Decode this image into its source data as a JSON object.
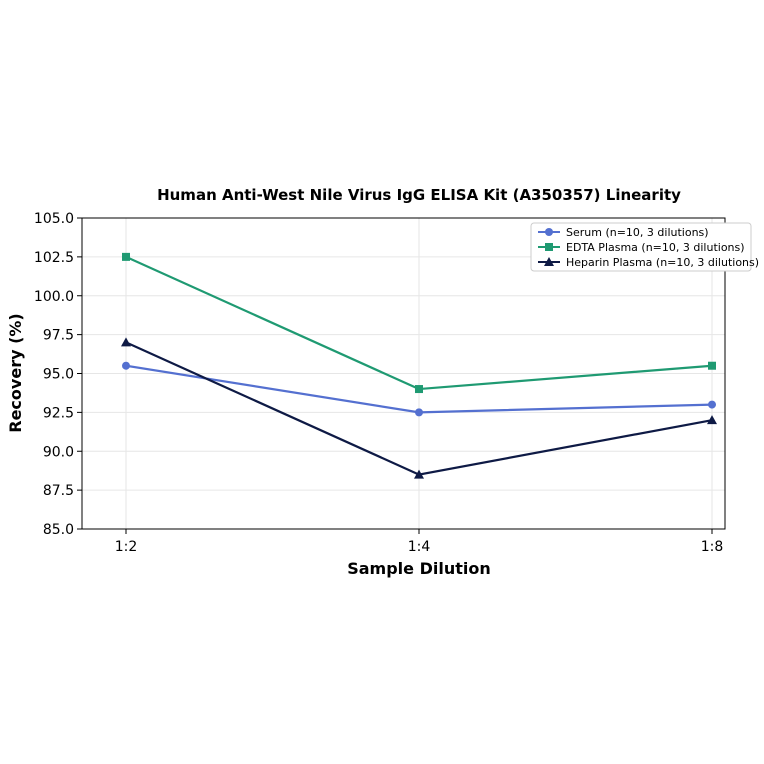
{
  "chart_data": {
    "type": "line",
    "title": "Human Anti-West Nile Virus IgG ELISA Kit (A350357) Linearity",
    "xlabel": "Sample Dilution",
    "ylabel": "Recovery (%)",
    "categories": [
      "1:2",
      "1:4",
      "1:8"
    ],
    "ylim": [
      85.0,
      105.0
    ],
    "yticks": [
      "85.0",
      "87.5",
      "90.0",
      "92.5",
      "95.0",
      "97.5",
      "100.0",
      "102.5",
      "105.0"
    ],
    "grid": true,
    "legend_position": "top-right",
    "series": [
      {
        "name": "Serum (n=10, 3 dilutions)",
        "values": [
          95.5,
          92.5,
          93.0
        ],
        "color": "#5470d0",
        "marker": "circle"
      },
      {
        "name": "EDTA Plasma (n=10, 3 dilutions)",
        "values": [
          102.5,
          94.0,
          95.5
        ],
        "color": "#1f9a72",
        "marker": "square"
      },
      {
        "name": "Heparin Plasma (n=10, 3 dilutions)",
        "values": [
          97.0,
          88.5,
          92.0
        ],
        "color": "#0e1a45",
        "marker": "triangle"
      }
    ]
  }
}
